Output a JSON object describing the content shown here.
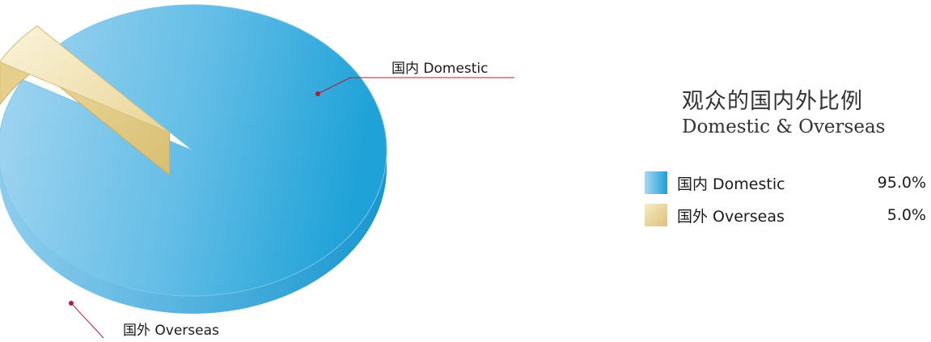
{
  "chart_data": {
    "type": "pie",
    "categories": [
      "国内 Domestic",
      "国外 Overseas"
    ],
    "values": [
      95.0,
      5.0
    ],
    "value_labels": [
      "95.0%",
      "5.0%"
    ],
    "title": "观众的国内外比例",
    "subtitle": "Domestic & Overseas",
    "legend_position": "right",
    "style": "3d-exploded",
    "colors": [
      "#4fb3e2",
      "#ecd79a"
    ]
  }
}
